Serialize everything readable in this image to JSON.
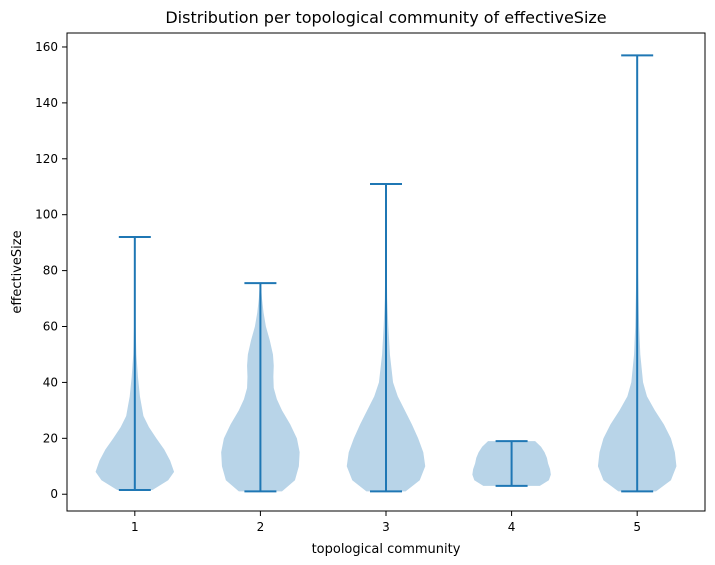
{
  "chart_data": {
    "type": "violin",
    "title": "Distribution per topological community of effectiveSize",
    "xlabel": "topological community",
    "ylabel": "effectiveSize",
    "categories": [
      "1",
      "2",
      "3",
      "4",
      "5"
    ],
    "ylim": [
      -6,
      165
    ],
    "yticks": [
      0,
      20,
      40,
      60,
      80,
      100,
      120,
      140,
      160
    ],
    "grid": false,
    "colors": {
      "body": "#b8d4e8",
      "line": "#1f77b4"
    },
    "distributions": [
      {
        "category": "1",
        "min": 1.5,
        "max": 92,
        "profile": [
          [
            1.5,
            0.45
          ],
          [
            5,
            0.85
          ],
          [
            8,
            1.0
          ],
          [
            12,
            0.9
          ],
          [
            16,
            0.75
          ],
          [
            20,
            0.55
          ],
          [
            24,
            0.36
          ],
          [
            28,
            0.22
          ],
          [
            35,
            0.13
          ],
          [
            42,
            0.08
          ],
          [
            50,
            0.04
          ],
          [
            60,
            0.02
          ],
          [
            75,
            0.01
          ],
          [
            92,
            0.005
          ]
        ]
      },
      {
        "category": "2",
        "min": 1,
        "max": 75.5,
        "profile": [
          [
            1,
            0.55
          ],
          [
            5,
            0.88
          ],
          [
            10,
            0.98
          ],
          [
            15,
            1.0
          ],
          [
            20,
            0.93
          ],
          [
            25,
            0.76
          ],
          [
            30,
            0.55
          ],
          [
            34,
            0.42
          ],
          [
            38,
            0.34
          ],
          [
            42,
            0.33
          ],
          [
            46,
            0.34
          ],
          [
            50,
            0.32
          ],
          [
            55,
            0.24
          ],
          [
            60,
            0.14
          ],
          [
            65,
            0.08
          ],
          [
            70,
            0.04
          ],
          [
            75.5,
            0.01
          ]
        ]
      },
      {
        "category": "3",
        "min": 1,
        "max": 111,
        "profile": [
          [
            1,
            0.5
          ],
          [
            5,
            0.86
          ],
          [
            10,
            1.0
          ],
          [
            15,
            0.95
          ],
          [
            20,
            0.82
          ],
          [
            25,
            0.66
          ],
          [
            30,
            0.48
          ],
          [
            35,
            0.3
          ],
          [
            40,
            0.18
          ],
          [
            50,
            0.1
          ],
          [
            60,
            0.06
          ],
          [
            70,
            0.03
          ],
          [
            85,
            0.015
          ],
          [
            111,
            0.005
          ]
        ]
      },
      {
        "category": "4",
        "min": 3,
        "max": 19,
        "profile": [
          [
            3,
            0.72
          ],
          [
            5,
            0.95
          ],
          [
            7,
            1.0
          ],
          [
            9,
            0.98
          ],
          [
            11,
            0.93
          ],
          [
            13,
            0.9
          ],
          [
            15,
            0.84
          ],
          [
            17,
            0.75
          ],
          [
            19,
            0.6
          ]
        ]
      },
      {
        "category": "5",
        "min": 1,
        "max": 157,
        "profile": [
          [
            1,
            0.48
          ],
          [
            5,
            0.86
          ],
          [
            10,
            1.0
          ],
          [
            15,
            0.96
          ],
          [
            20,
            0.86
          ],
          [
            25,
            0.68
          ],
          [
            30,
            0.45
          ],
          [
            35,
            0.25
          ],
          [
            40,
            0.15
          ],
          [
            50,
            0.08
          ],
          [
            60,
            0.05
          ],
          [
            80,
            0.02
          ],
          [
            110,
            0.01
          ],
          [
            157,
            0.005
          ]
        ]
      }
    ]
  }
}
